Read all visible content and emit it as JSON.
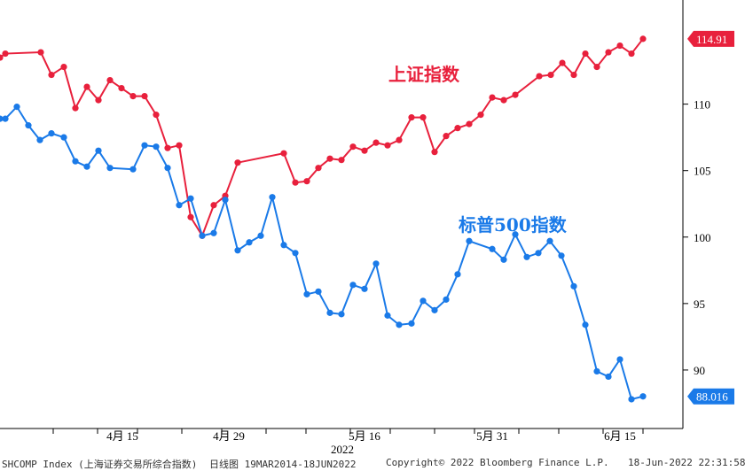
{
  "chart_data": {
    "type": "line",
    "year_label": "2022",
    "x_ticks": [
      "4月 15",
      "4月 29",
      "5月 16",
      "5月 31",
      "6月 15"
    ],
    "y_ticks": [
      90,
      95,
      100,
      105,
      110
    ],
    "ylim": [
      85.6,
      117.3
    ],
    "grid": false,
    "series": [
      {
        "name": "上证指数",
        "color": "#e8203c",
        "last_label": "114.91",
        "points": [
          [
            0,
            113.5
          ],
          [
            6,
            113.8
          ],
          [
            46,
            113.9
          ],
          [
            58,
            112.2
          ],
          [
            72,
            112.8
          ],
          [
            85,
            109.7
          ],
          [
            98,
            111.3
          ],
          [
            111,
            110.3
          ],
          [
            124,
            111.8
          ],
          [
            137,
            111.2
          ],
          [
            150,
            110.6
          ],
          [
            163,
            110.6
          ],
          [
            176,
            109.2
          ],
          [
            189,
            106.7
          ],
          [
            202,
            106.9
          ],
          [
            215,
            101.5
          ],
          [
            228,
            100.1
          ],
          [
            241,
            102.4
          ],
          [
            254,
            103.1
          ],
          [
            268,
            105.6
          ],
          [
            320,
            106.3
          ],
          [
            333,
            104.1
          ],
          [
            346,
            104.2
          ],
          [
            359,
            105.2
          ],
          [
            372,
            105.9
          ],
          [
            385,
            105.8
          ],
          [
            398,
            106.8
          ],
          [
            411,
            106.5
          ],
          [
            424,
            107.1
          ],
          [
            437,
            106.9
          ],
          [
            450,
            107.3
          ],
          [
            464,
            109.0
          ],
          [
            477,
            109.0
          ],
          [
            490,
            106.4
          ],
          [
            503,
            107.6
          ],
          [
            516,
            108.2
          ],
          [
            529,
            108.5
          ],
          [
            542,
            109.2
          ],
          [
            555,
            110.5
          ],
          [
            568,
            110.3
          ],
          [
            581,
            110.7
          ],
          [
            608,
            112.1
          ],
          [
            621,
            112.2
          ],
          [
            634,
            113.1
          ],
          [
            647,
            112.2
          ],
          [
            660,
            113.8
          ],
          [
            673,
            112.8
          ],
          [
            686,
            113.9
          ],
          [
            699,
            114.4
          ],
          [
            712,
            113.8
          ],
          [
            725,
            114.91
          ]
        ]
      },
      {
        "name": "标普500指数",
        "color": "#1a7ae8",
        "last_label": "88.016",
        "points": [
          [
            0,
            108.9
          ],
          [
            6,
            108.9
          ],
          [
            19,
            109.8
          ],
          [
            32,
            108.4
          ],
          [
            45,
            107.3
          ],
          [
            58,
            107.8
          ],
          [
            72,
            107.5
          ],
          [
            85,
            105.7
          ],
          [
            98,
            105.3
          ],
          [
            111,
            106.5
          ],
          [
            124,
            105.2
          ],
          [
            150,
            105.1
          ],
          [
            163,
            106.9
          ],
          [
            176,
            106.8
          ],
          [
            189,
            105.2
          ],
          [
            202,
            102.4
          ],
          [
            215,
            102.9
          ],
          [
            228,
            100.1
          ],
          [
            241,
            100.3
          ],
          [
            254,
            102.8
          ],
          [
            268,
            99.0
          ],
          [
            281,
            99.6
          ],
          [
            294,
            100.1
          ],
          [
            307,
            103.0
          ],
          [
            320,
            99.4
          ],
          [
            333,
            98.8
          ],
          [
            346,
            95.7
          ],
          [
            359,
            95.9
          ],
          [
            372,
            94.3
          ],
          [
            385,
            94.2
          ],
          [
            398,
            96.4
          ],
          [
            411,
            96.1
          ],
          [
            424,
            98.0
          ],
          [
            437,
            94.1
          ],
          [
            450,
            93.4
          ],
          [
            464,
            93.5
          ],
          [
            477,
            95.2
          ],
          [
            490,
            94.5
          ],
          [
            503,
            95.3
          ],
          [
            516,
            97.2
          ],
          [
            529,
            99.7
          ],
          [
            555,
            99.1
          ],
          [
            568,
            98.3
          ],
          [
            581,
            100.2
          ],
          [
            594,
            98.5
          ],
          [
            607,
            98.8
          ],
          [
            620,
            99.7
          ],
          [
            633,
            98.6
          ],
          [
            647,
            96.3
          ],
          [
            660,
            93.4
          ],
          [
            673,
            89.9
          ],
          [
            686,
            89.5
          ],
          [
            699,
            90.8
          ],
          [
            712,
            87.8
          ],
          [
            725,
            88.016
          ]
        ]
      }
    ]
  },
  "footer": {
    "index": "SHCOMP Index (上海证券交易所综合指数)",
    "range": "日线图 19MAR2014-18JUN2022",
    "copyright": "Copyright© 2022 Bloomberg Finance L.P.",
    "timestamp": "18-Jun-2022 22:31:58"
  }
}
